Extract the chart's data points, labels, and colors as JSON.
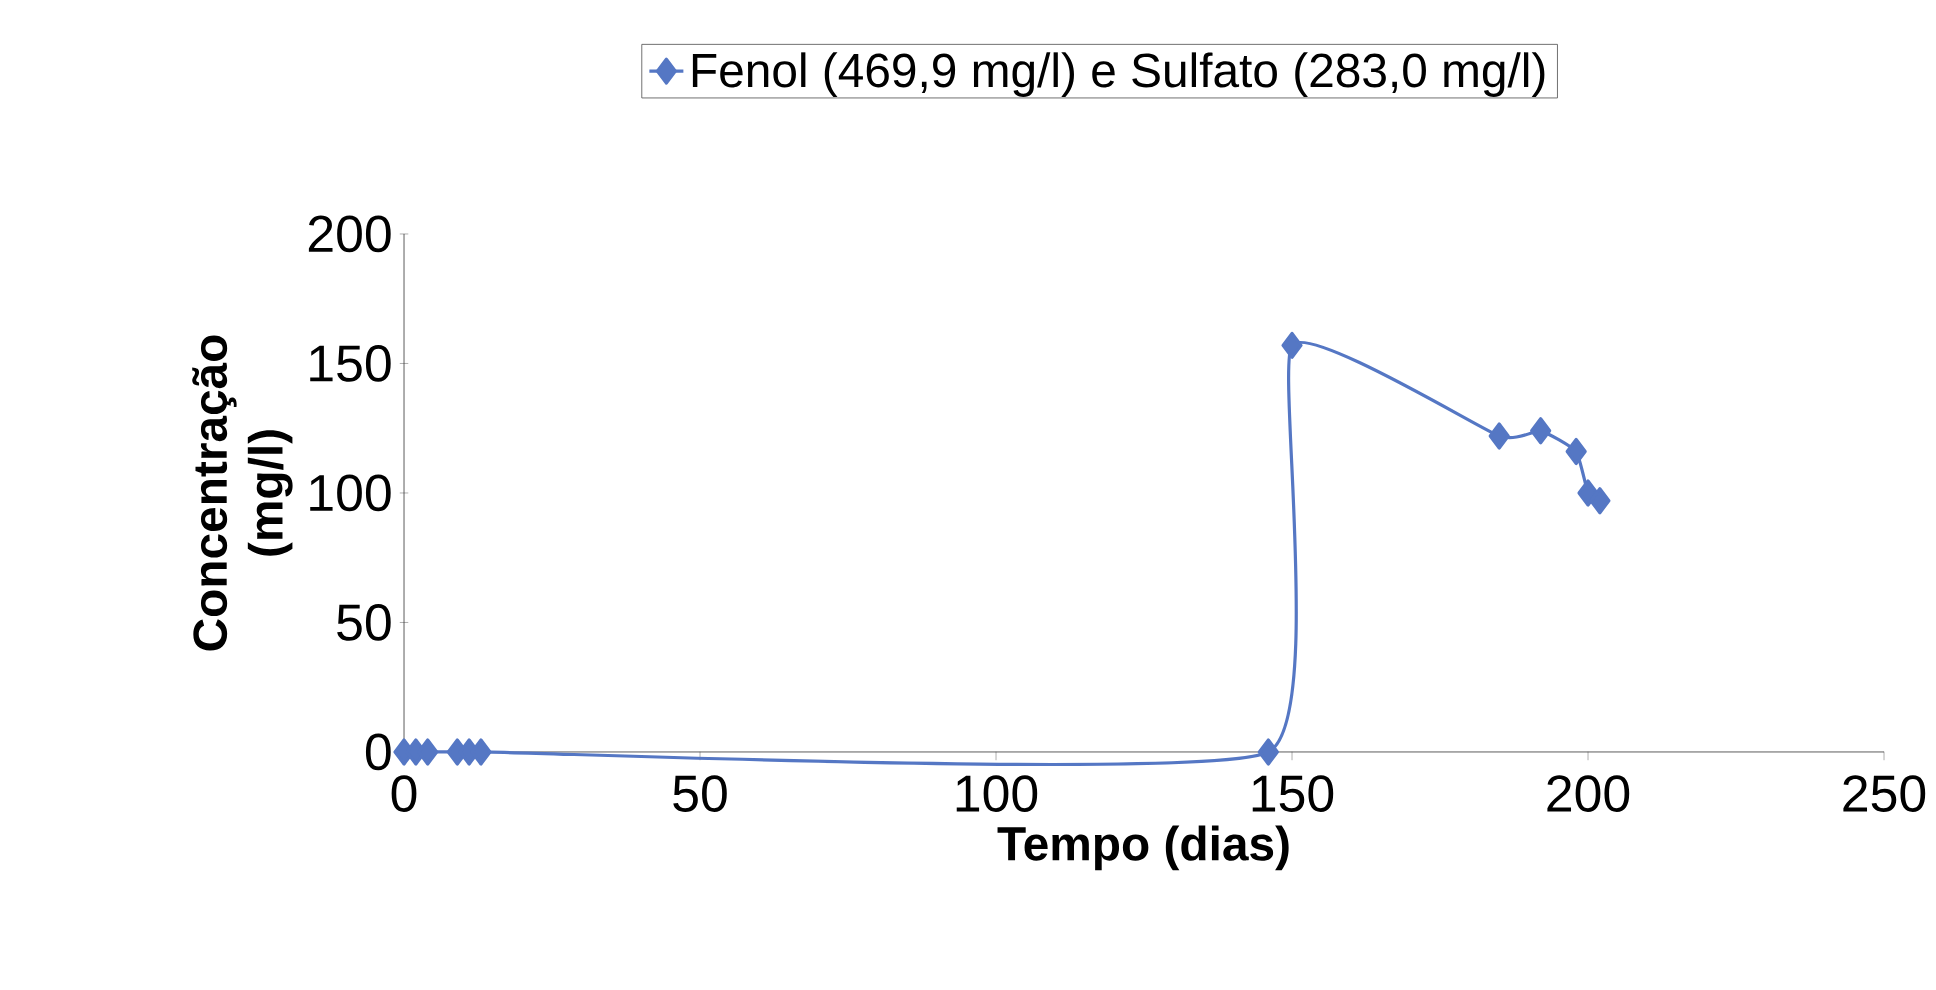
{
  "chart_data": {
    "type": "line",
    "xlabel": "Tempo (dias)",
    "ylabel": "Concentração (mg/l)",
    "x": [
      0,
      2,
      4,
      9,
      11,
      13,
      146,
      150,
      185,
      192,
      198,
      200,
      202
    ],
    "series": [
      {
        "name": "Fenol (469,9 mg/l) e Sulfato (283,0 mg/l)",
        "color": "#5577c4",
        "values": [
          0,
          0,
          0,
          0,
          0,
          0,
          0,
          157,
          122,
          124,
          116,
          100,
          97
        ]
      }
    ],
    "xlim": [
      0,
      250
    ],
    "xticks": [
      0,
      50,
      100,
      150,
      200,
      250
    ],
    "ylim": [
      0,
      200
    ],
    "yticks": [
      0,
      50,
      100,
      150,
      200
    ],
    "marker": "diamond",
    "line_style": "solid",
    "legend": "top",
    "grid": false
  }
}
